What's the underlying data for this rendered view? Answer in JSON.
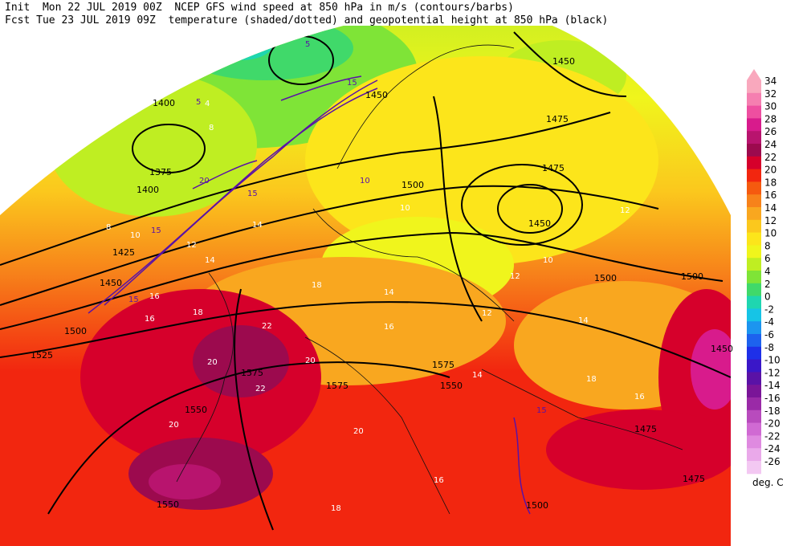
{
  "header": {
    "line1": "Init  Mon 22 JUL 2019 00Z  NCEP GFS wind speed at 850 hPa in m/s (contours/barbs)",
    "line2": "Fcst Tue 23 JUL 2019 09Z  temperature (shaded/dotted) and geopotential height at 850 hPa (black)"
  },
  "legend": {
    "units": "deg. C",
    "levels": [
      {
        "label": "34",
        "color": "#f9a8bd"
      },
      {
        "label": "32",
        "color": "#f57fb0"
      },
      {
        "label": "30",
        "color": "#ee4fa0"
      },
      {
        "label": "28",
        "color": "#d81b8c"
      },
      {
        "label": "26",
        "color": "#b8146e"
      },
      {
        "label": "24",
        "color": "#9c0a4e"
      },
      {
        "label": "22",
        "color": "#d6002b"
      },
      {
        "label": "20",
        "color": "#f2260f"
      },
      {
        "label": "18",
        "color": "#f55a0f"
      },
      {
        "label": "16",
        "color": "#f7821a"
      },
      {
        "label": "14",
        "color": "#f9a71f"
      },
      {
        "label": "12",
        "color": "#fbc81d"
      },
      {
        "label": "10",
        "color": "#fce51b"
      },
      {
        "label": "8",
        "color": "#f0f51c"
      },
      {
        "label": "6",
        "color": "#bfee22"
      },
      {
        "label": "4",
        "color": "#7fe437"
      },
      {
        "label": "2",
        "color": "#40d96a"
      },
      {
        "label": "0",
        "color": "#1fd6b0"
      },
      {
        "label": "-2",
        "color": "#16c4e6"
      },
      {
        "label": "-4",
        "color": "#1c95ef"
      },
      {
        "label": "-6",
        "color": "#1d62ee"
      },
      {
        "label": "-8",
        "color": "#1e30e8"
      },
      {
        "label": "-10",
        "color": "#3a17c8"
      },
      {
        "label": "-12",
        "color": "#5a12a6"
      },
      {
        "label": "-14",
        "color": "#7a1598"
      },
      {
        "label": "-16",
        "color": "#9a2aa7"
      },
      {
        "label": "-18",
        "color": "#b84bbd"
      },
      {
        "label": "-20",
        "color": "#d06ad3"
      },
      {
        "label": "-22",
        "color": "#df8ae0"
      },
      {
        "label": "-24",
        "color": "#eaa9ea"
      },
      {
        "label": "-26",
        "color": "#f3c8f2"
      }
    ]
  },
  "height_labels": [
    "1400",
    "1375",
    "1400",
    "1425",
    "1450",
    "1500",
    "1525",
    "1550",
    "1575",
    "1550",
    "1575",
    "1575",
    "1550",
    "1500",
    "1475",
    "1475",
    "1450",
    "1450",
    "1500",
    "1500",
    "1450",
    "1475",
    "1475",
    "1500",
    "1450"
  ],
  "temp_labels": [
    "4",
    "8",
    "8",
    "10",
    "12",
    "14",
    "14",
    "16",
    "16",
    "18",
    "20",
    "20",
    "22",
    "22",
    "20",
    "18",
    "16",
    "14",
    "14",
    "12",
    "12",
    "10",
    "10",
    "12",
    "14",
    "16",
    "18",
    "20",
    "18",
    "16"
  ],
  "wind_labels": [
    "15",
    "15",
    "20",
    "15",
    "15",
    "10",
    "5",
    "5",
    "15"
  ]
}
